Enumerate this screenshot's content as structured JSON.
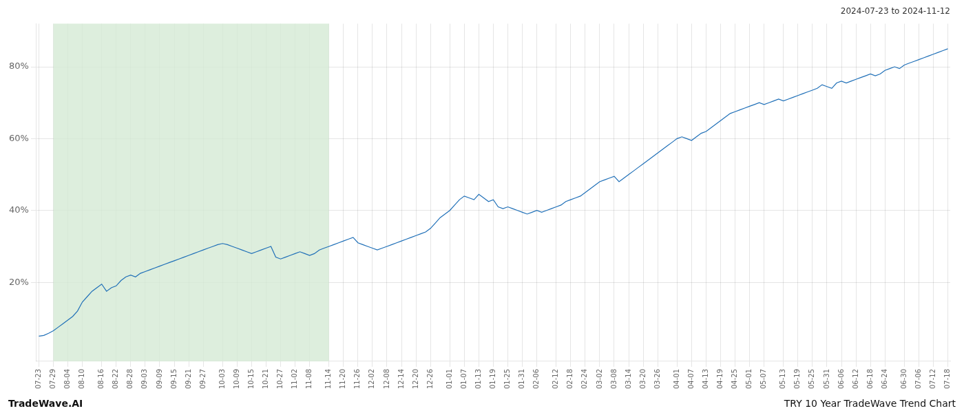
{
  "chart_data": {
    "type": "line",
    "title": "TRY 10 Year TradeWave Trend Chart",
    "subtitle": "2024-07-23 to 2024-11-12",
    "annotations": [
      {
        "type": "text",
        "text": "TradeWave.AI"
      },
      {
        "type": "span",
        "from": "07-29",
        "to": "11-14",
        "color": "#d4ead4"
      }
    ],
    "color": "#2070b8",
    "grid": true,
    "ylim": [
      -2,
      92
    ],
    "yticks": [
      {
        "value": 20,
        "label": "20%"
      },
      {
        "value": 40,
        "label": "40%"
      },
      {
        "value": 60,
        "label": "60%"
      },
      {
        "value": 80,
        "label": "80%"
      }
    ],
    "categories": [
      "07-23",
      null,
      null,
      "07-29",
      null,
      null,
      "08-04",
      null,
      null,
      "08-10",
      null,
      null,
      null,
      "08-16",
      null,
      null,
      "08-22",
      null,
      null,
      "08-28",
      null,
      null,
      "09-03",
      null,
      null,
      "09-09",
      null,
      null,
      "09-15",
      null,
      null,
      "09-21",
      null,
      null,
      "09-27",
      null,
      null,
      null,
      "10-03",
      null,
      null,
      "10-09",
      null,
      null,
      "10-15",
      null,
      null,
      "10-21",
      null,
      null,
      "10-27",
      null,
      null,
      "11-02",
      null,
      null,
      "11-08",
      null,
      null,
      null,
      "11-14",
      null,
      null,
      "11-20",
      null,
      null,
      "11-26",
      null,
      null,
      "12-02",
      null,
      null,
      "12-08",
      null,
      null,
      "12-14",
      null,
      null,
      "12-20",
      null,
      null,
      "12-26",
      null,
      null,
      null,
      "01-01",
      null,
      null,
      "01-07",
      null,
      null,
      "01-13",
      null,
      null,
      "01-19",
      null,
      null,
      "01-25",
      null,
      null,
      "01-31",
      null,
      null,
      "02-06",
      null,
      null,
      null,
      "02-12",
      null,
      null,
      "02-18",
      null,
      null,
      "02-24",
      null,
      null,
      "03-02",
      null,
      null,
      "03-08",
      null,
      null,
      "03-14",
      null,
      null,
      "03-20",
      null,
      null,
      "03-26",
      null,
      null,
      null,
      "04-01",
      null,
      null,
      "04-07",
      null,
      null,
      "04-13",
      null,
      null,
      "04-19",
      null,
      null,
      "04-25",
      null,
      null,
      "05-01",
      null,
      null,
      "05-07",
      null,
      null,
      null,
      "05-13",
      null,
      null,
      "05-19",
      null,
      null,
      "05-25",
      null,
      null,
      "05-31",
      null,
      null,
      "06-06",
      null,
      null,
      "06-12",
      null,
      null,
      "06-18",
      null,
      null,
      "06-24",
      null,
      null,
      null,
      "06-30",
      null,
      null,
      "07-06",
      null,
      null,
      "07-12",
      null,
      null,
      "07-18"
    ],
    "values": [
      5.0,
      5.2,
      5.8,
      6.5,
      7.5,
      8.5,
      9.5,
      10.5,
      12.0,
      14.5,
      16.0,
      17.5,
      18.5,
      19.5,
      17.5,
      18.5,
      19.0,
      20.5,
      21.5,
      22.0,
      21.5,
      22.5,
      23.0,
      23.5,
      24.0,
      24.5,
      25.0,
      25.5,
      26.0,
      26.5,
      27.0,
      27.5,
      28.0,
      28.5,
      29.0,
      29.5,
      30.0,
      30.5,
      30.8,
      30.5,
      30.0,
      29.5,
      29.0,
      28.5,
      28.0,
      28.5,
      29.0,
      29.5,
      30.0,
      27.0,
      26.5,
      27.0,
      27.5,
      28.0,
      28.5,
      28.0,
      27.5,
      28.0,
      29.0,
      29.5,
      30.0,
      30.5,
      31.0,
      31.5,
      32.0,
      32.5,
      31.0,
      30.5,
      30.0,
      29.5,
      29.0,
      29.5,
      30.0,
      30.5,
      31.0,
      31.5,
      32.0,
      32.5,
      33.0,
      33.5,
      34.0,
      35.0,
      36.5,
      38.0,
      39.0,
      40.0,
      41.5,
      43.0,
      44.0,
      43.5,
      43.0,
      44.5,
      43.5,
      42.5,
      43.0,
      41.0,
      40.5,
      41.0,
      40.5,
      40.0,
      39.5,
      39.0,
      39.5,
      40.0,
      39.5,
      40.0,
      40.5,
      41.0,
      41.5,
      42.5,
      43.0,
      43.5,
      44.0,
      45.0,
      46.0,
      47.0,
      48.0,
      48.5,
      49.0,
      49.5,
      48.0,
      49.0,
      50.0,
      51.0,
      52.0,
      53.0,
      54.0,
      55.0,
      56.0,
      57.0,
      58.0,
      59.0,
      60.0,
      60.5,
      60.0,
      59.5,
      60.5,
      61.5,
      62.0,
      63.0,
      64.0,
      65.0,
      66.0,
      67.0,
      67.5,
      68.0,
      68.5,
      69.0,
      69.5,
      70.0,
      69.5,
      70.0,
      70.5,
      71.0,
      70.5,
      71.0,
      71.5,
      72.0,
      72.5,
      73.0,
      73.5,
      74.0,
      75.0,
      74.5,
      74.0,
      75.5,
      76.0,
      75.5,
      76.0,
      76.5,
      77.0,
      77.5,
      78.0,
      77.5,
      78.0,
      79.0,
      79.5,
      80.0,
      79.5,
      80.5,
      81.0,
      81.5,
      82.0,
      82.5,
      83.0,
      83.5,
      84.0,
      84.5,
      85.0
    ]
  }
}
